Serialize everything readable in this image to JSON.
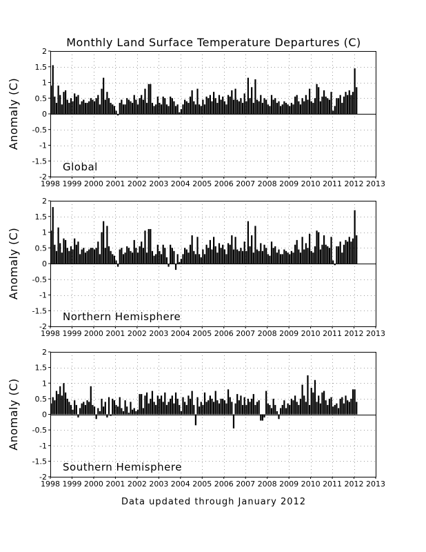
{
  "chart_data": [
    {
      "type": "bar",
      "title": "Monthly Land Surface Temperature Departures (C)",
      "panel_label": "Global",
      "ylabel": "Anomaly (C)",
      "xlabel": "",
      "xlim": [
        1998,
        2013
      ],
      "ylim": [
        -2,
        2
      ],
      "yticks": [
        "2",
        "1.5",
        "1",
        "0.5",
        "0",
        "-0.5",
        "-1",
        "-1.5",
        "-2"
      ],
      "xticks": [
        "1998",
        "1999",
        "2000",
        "2001",
        "2002",
        "2003",
        "2004",
        "2005",
        "2006",
        "2007",
        "2008",
        "2009",
        "2010",
        "2011",
        "2012",
        "2013"
      ],
      "grid": true,
      "x_start": "1998-01",
      "x_end": "2012-01",
      "yearly_values": [
        [
          0.9,
          1.55,
          0.55,
          0.35,
          0.9,
          0.6,
          0.3,
          0.7,
          0.75,
          0.45,
          0.35,
          0.5
        ],
        [
          0.4,
          0.65,
          0.55,
          0.6,
          0.3,
          0.4,
          0.45,
          0.35,
          0.35,
          0.4,
          0.5,
          0.45
        ],
        [
          0.4,
          0.5,
          0.6,
          0.3,
          0.8,
          1.15,
          0.45,
          0.7,
          0.5,
          0.35,
          0.3,
          0.25
        ],
        [
          0.1,
          -0.05,
          0.35,
          0.45,
          0.3,
          0.3,
          0.5,
          0.45,
          0.4,
          0.35,
          0.6,
          0.45
        ],
        [
          0.3,
          0.5,
          0.6,
          0.45,
          0.8,
          0.35,
          0.95,
          0.95,
          0.35,
          0.25,
          0.3,
          0.55
        ],
        [
          0.35,
          0.3,
          0.55,
          0.5,
          0.3,
          0.25,
          0.55,
          0.5,
          0.4,
          0.25,
          0.3,
          0.05
        ],
        [
          0.15,
          0.3,
          0.45,
          0.4,
          0.35,
          0.55,
          0.75,
          0.4,
          0.3,
          0.8,
          0.3,
          0.25
        ],
        [
          0.45,
          0.3,
          0.55,
          0.5,
          0.6,
          0.4,
          0.7,
          0.5,
          0.35,
          0.6,
          0.45,
          0.55
        ],
        [
          0.4,
          0.3,
          0.6,
          0.55,
          0.75,
          0.45,
          0.8,
          0.45,
          0.4,
          0.5,
          0.35,
          0.65
        ],
        [
          0.4,
          1.15,
          0.5,
          0.85,
          0.35,
          1.1,
          0.45,
          0.4,
          0.6,
          0.35,
          0.5,
          0.45
        ],
        [
          0.3,
          0.25,
          0.6,
          0.45,
          0.5,
          0.35,
          0.4,
          0.25,
          0.3,
          0.4,
          0.35,
          0.3
        ],
        [
          0.25,
          0.35,
          0.3,
          0.55,
          0.6,
          0.4,
          0.3,
          0.5,
          0.4,
          0.6,
          0.45,
          0.8
        ],
        [
          0.4,
          0.35,
          0.5,
          0.95,
          0.85,
          0.4,
          0.55,
          0.75,
          0.55,
          0.5,
          0.45,
          0.7
        ],
        [
          0.1,
          0.25,
          0.5,
          0.5,
          0.6,
          0.35,
          0.55,
          0.7,
          0.6,
          0.75,
          0.6,
          0.7
        ],
        [
          1.45,
          0.85
        ]
      ]
    },
    {
      "type": "bar",
      "panel_label": "Northern Hemisphere",
      "ylabel": "Anomaly (C)",
      "xlabel": "",
      "xlim": [
        1998,
        2013
      ],
      "ylim": [
        -2,
        2
      ],
      "yticks": [
        "2",
        "1.5",
        "1",
        "0.5",
        "0",
        "-0.5",
        "-1",
        "-1.5",
        "-2"
      ],
      "xticks": [
        "1998",
        "1999",
        "2000",
        "2001",
        "2002",
        "2003",
        "2004",
        "2005",
        "2006",
        "2007",
        "2008",
        "2009",
        "2010",
        "2011",
        "2012",
        "2013"
      ],
      "grid": true,
      "x_start": "1998-01",
      "x_end": "2012-01",
      "yearly_values": [
        [
          1.05,
          1.8,
          0.6,
          0.4,
          1.15,
          0.65,
          0.35,
          0.8,
          0.75,
          0.5,
          0.4,
          0.55
        ],
        [
          0.45,
          0.8,
          0.6,
          0.7,
          0.3,
          0.45,
          0.5,
          0.35,
          0.4,
          0.45,
          0.5,
          0.5
        ],
        [
          0.45,
          0.5,
          0.7,
          0.3,
          1.0,
          1.35,
          0.5,
          1.2,
          0.55,
          0.4,
          0.3,
          0.25
        ],
        [
          0.1,
          -0.1,
          0.45,
          0.5,
          0.3,
          0.35,
          0.55,
          0.5,
          0.4,
          0.35,
          0.75,
          0.5
        ],
        [
          0.35,
          0.55,
          0.7,
          0.5,
          1.05,
          0.35,
          1.1,
          1.1,
          0.4,
          0.25,
          0.3,
          0.6
        ],
        [
          0.4,
          0.3,
          0.6,
          0.5,
          0.2,
          -0.1,
          0.6,
          0.5,
          0.4,
          -0.2,
          0.3,
          0.05
        ],
        [
          0.15,
          0.3,
          0.5,
          0.45,
          0.35,
          0.6,
          0.9,
          0.4,
          0.3,
          0.85,
          0.3,
          0.2
        ],
        [
          0.45,
          0.3,
          0.6,
          0.5,
          0.75,
          0.45,
          0.85,
          0.55,
          0.35,
          0.65,
          0.5,
          0.6
        ],
        [
          0.45,
          0.3,
          0.65,
          0.6,
          0.9,
          0.45,
          0.85,
          0.45,
          0.4,
          0.5,
          0.4,
          0.7
        ],
        [
          0.4,
          1.35,
          0.55,
          0.9,
          0.35,
          1.2,
          0.45,
          0.4,
          0.65,
          0.4,
          0.6,
          0.5
        ],
        [
          0.3,
          0.25,
          0.7,
          0.5,
          0.55,
          0.35,
          0.45,
          0.3,
          0.3,
          0.45,
          0.4,
          0.35
        ],
        [
          0.3,
          0.4,
          0.35,
          0.6,
          0.75,
          0.45,
          0.35,
          0.85,
          0.45,
          0.65,
          0.5,
          0.95
        ],
        [
          0.4,
          0.35,
          0.55,
          1.05,
          1.0,
          0.45,
          0.6,
          0.9,
          0.6,
          0.55,
          0.5,
          0.85
        ],
        [
          0.1,
          -0.05,
          0.55,
          0.55,
          0.7,
          0.35,
          0.6,
          0.75,
          0.7,
          0.85,
          0.7,
          0.8
        ],
        [
          1.7,
          0.9
        ]
      ]
    },
    {
      "type": "bar",
      "panel_label": "Southern Hemisphere",
      "ylabel": "Anomaly (C)",
      "xlabel": "",
      "xlim": [
        1998,
        2013
      ],
      "ylim": [
        -2,
        2
      ],
      "yticks": [
        "2",
        "1.5",
        "1",
        "0.5",
        "0",
        "-0.5",
        "-1",
        "-1.5",
        "-2"
      ],
      "xticks": [
        "1998",
        "1999",
        "2000",
        "2001",
        "2002",
        "2003",
        "2004",
        "2005",
        "2006",
        "2007",
        "2008",
        "2009",
        "2010",
        "2011",
        "2012",
        "2013"
      ],
      "grid": true,
      "x_start": "1998-01",
      "x_end": "2012-01",
      "yearly_values": [
        [
          0.35,
          0.55,
          0.45,
          0.75,
          0.65,
          0.9,
          0.6,
          1.0,
          0.7,
          0.5,
          0.4,
          0.3
        ],
        [
          0.15,
          0.45,
          0.3,
          -0.1,
          0.2,
          0.35,
          0.4,
          0.3,
          0.45,
          0.4,
          0.9,
          0.3
        ],
        [
          0.25,
          -0.15,
          0.2,
          0.1,
          0.5,
          0.25,
          0.4,
          -0.1,
          0.55,
          -0.05,
          0.5,
          0.45
        ],
        [
          0.3,
          0.25,
          0.55,
          0.2,
          0.1,
          0.45,
          0.25,
          0.05,
          0.4,
          0.15,
          0.2,
          0.1
        ],
        [
          0.15,
          0.65,
          0.65,
          0.2,
          0.6,
          0.7,
          0.35,
          0.5,
          0.75,
          0.4,
          0.3,
          0.6
        ],
        [
          0.5,
          0.6,
          0.4,
          0.7,
          0.3,
          0.4,
          0.5,
          0.6,
          0.35,
          0.7,
          0.5,
          0.3
        ],
        [
          0.1,
          0.55,
          0.4,
          0.3,
          0.6,
          0.5,
          0.75,
          0.3,
          -0.35,
          0.55,
          0.25,
          0.4
        ],
        [
          0.3,
          0.7,
          0.4,
          0.45,
          0.6,
          0.5,
          0.4,
          0.75,
          0.45,
          0.35,
          0.5,
          0.5
        ],
        [
          0.45,
          0.35,
          0.8,
          0.55,
          0.4,
          -0.45,
          0.35,
          0.65,
          0.45,
          0.6,
          0.3,
          0.55
        ],
        [
          0.3,
          0.5,
          0.4,
          0.5,
          0.65,
          0.3,
          0.4,
          0.45,
          -0.2,
          -0.2,
          -0.1,
          0.75
        ],
        [
          0.35,
          0.3,
          0.2,
          0.5,
          0.3,
          0.1,
          -0.15,
          0.2,
          0.3,
          0.45,
          0.2,
          0.35
        ],
        [
          0.3,
          0.5,
          0.45,
          0.6,
          0.4,
          0.3,
          0.5,
          0.95,
          0.6,
          0.4,
          1.25,
          0.3
        ],
        [
          0.85,
          0.7,
          1.1,
          0.4,
          0.6,
          0.35,
          0.7,
          0.75,
          0.45,
          0.3,
          0.5,
          0.55
        ],
        [
          0.25,
          0.3,
          0.35,
          0.2,
          0.5,
          0.55,
          0.35,
          0.6,
          0.45,
          0.4,
          0.5,
          0.8
        ],
        [
          0.8,
          0.4
        ]
      ]
    }
  ],
  "footer": "Data updated through January 2012"
}
